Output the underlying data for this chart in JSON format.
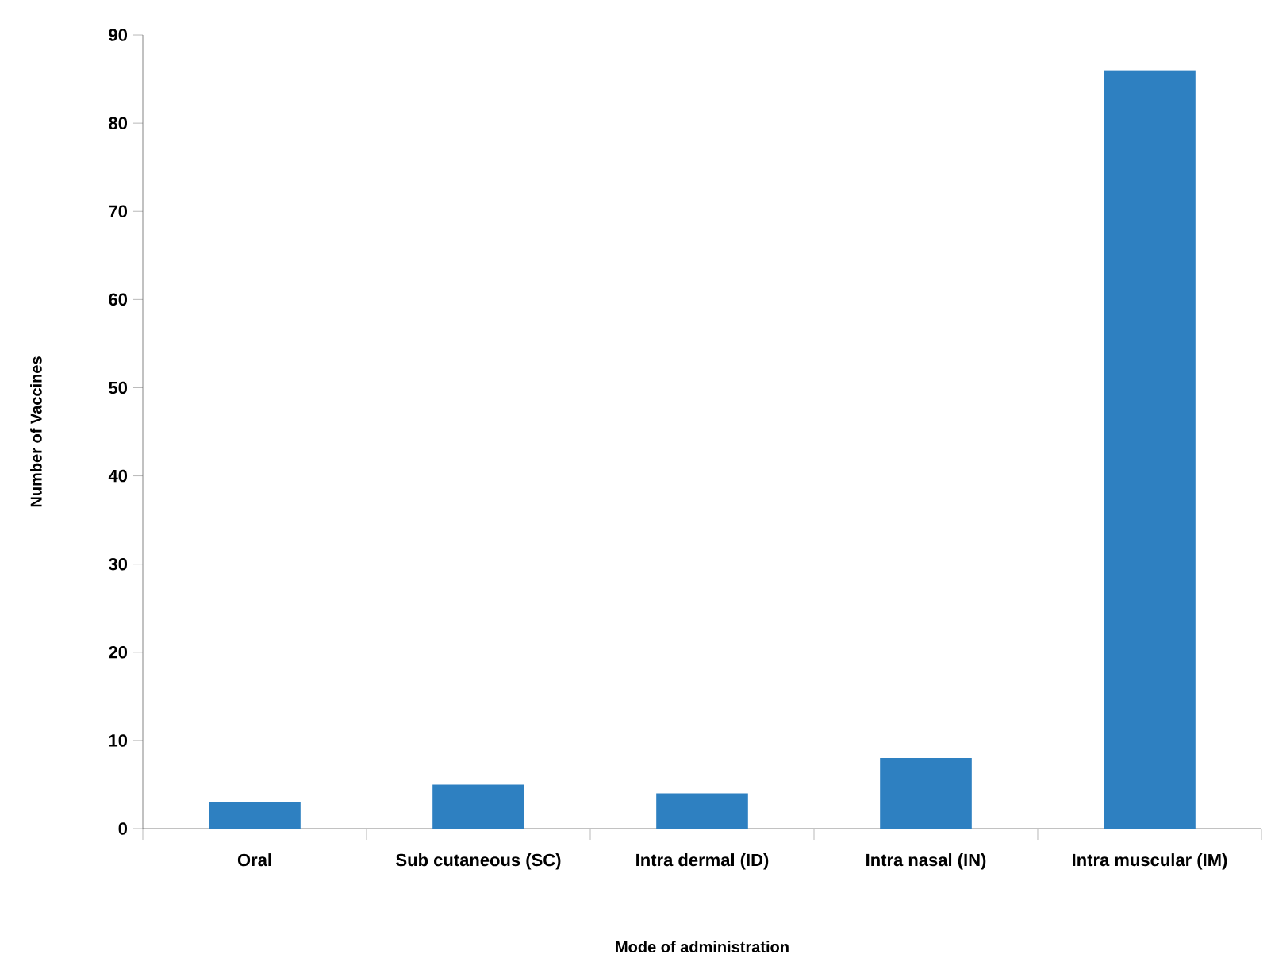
{
  "chart_data": {
    "type": "bar",
    "xlabel": "Mode of administration",
    "ylabel": "Number of Vaccines",
    "categories": [
      "Oral",
      "Sub cutaneous (SC)",
      "Intra dermal (ID)",
      "Intra nasal (IN)",
      "Intra muscular (IM)"
    ],
    "values": [
      3,
      5,
      4,
      8,
      86
    ],
    "color": "#2e80c1",
    "ylim": [
      0,
      90
    ],
    "yticks": [
      0,
      10,
      20,
      30,
      40,
      50,
      60,
      70,
      80,
      90
    ],
    "grid": false
  }
}
